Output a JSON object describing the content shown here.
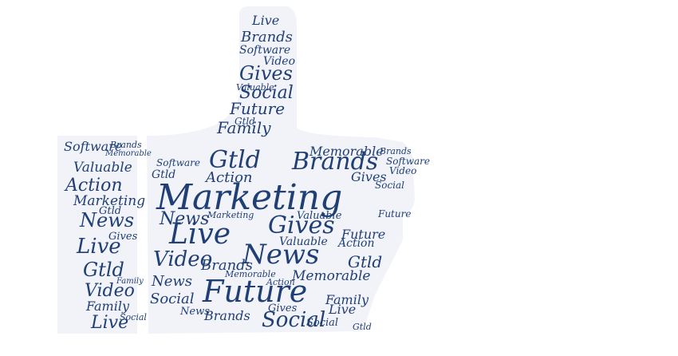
{
  "colors": {
    "text": "#1f3f75",
    "background": "#ffffff",
    "shape": "#f2f3f9"
  },
  "words": [
    "Marketing",
    "Live",
    "News",
    "Future",
    "Gives",
    "Brands",
    "Gtld",
    "Social",
    "Video",
    "Action",
    "Memorable",
    "Family",
    "Valuable",
    "Software",
    "Live",
    "Gives",
    "News",
    "Video",
    "Brands",
    "Social",
    "Gtld",
    "Future",
    "Family",
    "Software",
    "Action",
    "Valuable",
    "Memorable",
    "Brands",
    "Marketing",
    "Live",
    "Video",
    "News",
    "Gtld",
    "Social",
    "Gives",
    "Future",
    "Family",
    "Brands",
    "Video",
    "Live",
    "Action",
    "Valuable",
    "Marketing",
    "Memorable",
    "Software",
    "Gtld",
    "Family",
    "Social",
    "News",
    "Gives",
    "Brands",
    "Video",
    "Live",
    "Future",
    "Action",
    "Gtld",
    "Marketing",
    "Software",
    "Social",
    "Valuable",
    "Memorable",
    "News",
    "Video",
    "Family",
    "Brands",
    "Gives",
    "Live",
    "Future",
    "Action",
    "Gtld",
    "Social",
    "Marketing",
    "Valuable",
    "Memorable",
    "Software",
    "News",
    "Video",
    "Gives",
    "Brands",
    "Live",
    "Family",
    "Future",
    "Gtld",
    "Action",
    "Social"
  ]
}
